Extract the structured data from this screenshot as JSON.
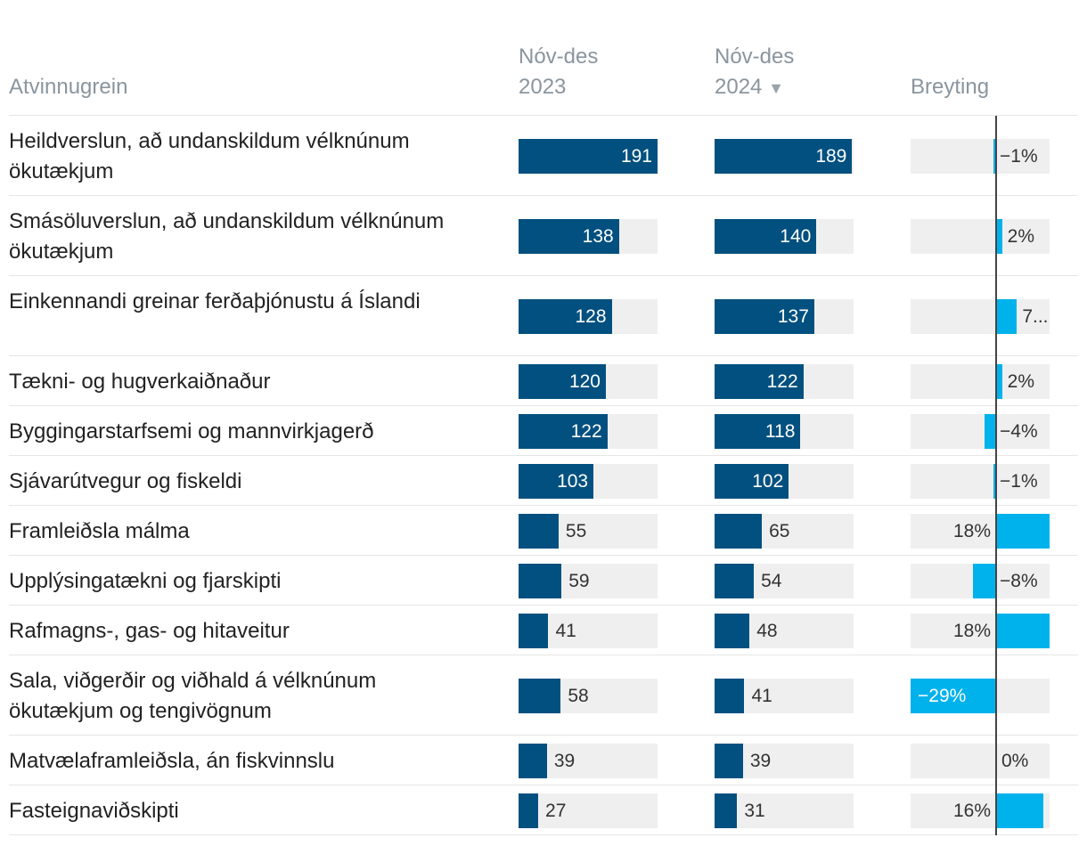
{
  "columns": {
    "label": "Atvinnugrein",
    "y2023_line1": "Nóv-des",
    "y2023_line2": "2023",
    "y2024_line1": "Nóv-des",
    "y2024_line2": "2024",
    "sort_icon": "▼",
    "change": "Breyting"
  },
  "colors": {
    "bar": "#02507f",
    "change_bar": "#00b2ec",
    "track": "#efefef"
  },
  "chart_data": {
    "type": "table",
    "max_value": 191,
    "change_max_pct": 29,
    "rows": [
      {
        "label": "Heildverslun, að undanskildum vélknúnum ökutækjum",
        "v2023": 191,
        "v2024": 189,
        "change": -1,
        "change_label": "−1%"
      },
      {
        "label": "Smásöluverslun, að undanskildum vélknúnum ökutækjum",
        "v2023": 138,
        "v2024": 140,
        "change": 2,
        "change_label": "2%"
      },
      {
        "label": "Einkennandi greinar ferðaþjónustu á Íslandi",
        "v2023": 128,
        "v2024": 137,
        "change": 7,
        "change_label": "7..."
      },
      {
        "label": "Tækni- og hugverkaiðnaður",
        "v2023": 120,
        "v2024": 122,
        "change": 2,
        "change_label": "2%"
      },
      {
        "label": "Byggingarstarfsemi og mannvirkjagerð",
        "v2023": 122,
        "v2024": 118,
        "change": -4,
        "change_label": "−4%"
      },
      {
        "label": "Sjávarútvegur og fiskeldi",
        "v2023": 103,
        "v2024": 102,
        "change": -1,
        "change_label": "−1%"
      },
      {
        "label": "Framleiðsla málma",
        "v2023": 55,
        "v2024": 65,
        "change": 18,
        "change_label": "18%"
      },
      {
        "label": "Upplýsingatækni og fjarskipti",
        "v2023": 59,
        "v2024": 54,
        "change": -8,
        "change_label": "−8%"
      },
      {
        "label": "Rafmagns-, gas- og hitaveitur",
        "v2023": 41,
        "v2024": 48,
        "change": 18,
        "change_label": "18%"
      },
      {
        "label": "Sala, viðgerðir og viðhald á vélknúnum ökutækjum og tengivögnum",
        "v2023": 58,
        "v2024": 41,
        "change": -29,
        "change_label": "−29%"
      },
      {
        "label": "Matvælaframleiðsla, án fiskvinnslu",
        "v2023": 39,
        "v2024": 39,
        "change": 0,
        "change_label": "0%"
      },
      {
        "label": "Fasteignaviðskipti",
        "v2023": 27,
        "v2024": 31,
        "change": 16,
        "change_label": "16%"
      }
    ]
  }
}
